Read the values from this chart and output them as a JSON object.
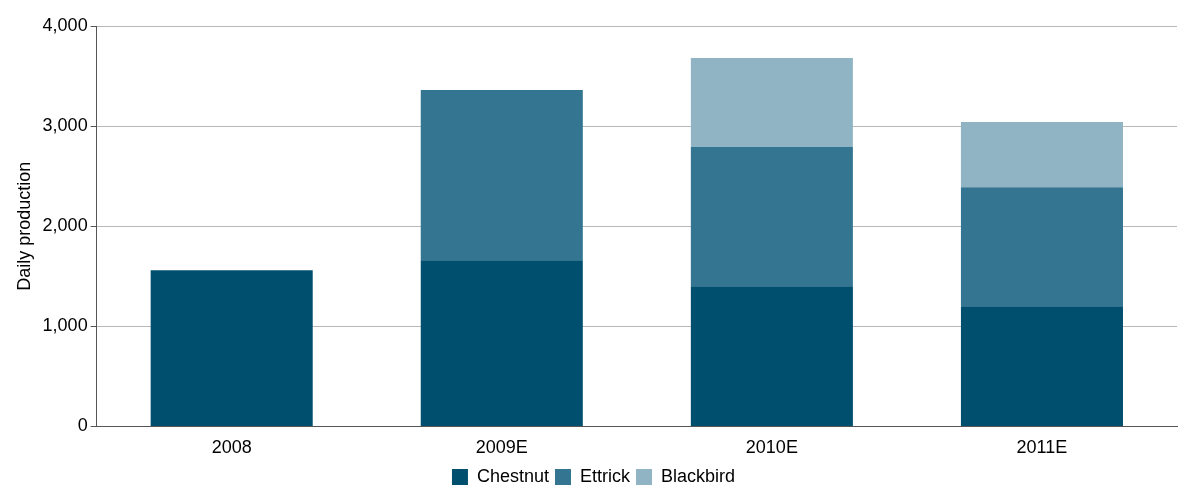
{
  "chart_data": {
    "type": "bar",
    "stacked": true,
    "ylabel": "Daily production",
    "categories": [
      "2008",
      "2009E",
      "2010E",
      "2011E"
    ],
    "series": [
      {
        "name": "Chestnut",
        "color": "#004f6f",
        "values": [
          1560,
          1660,
          1400,
          1200
        ]
      },
      {
        "name": "Ettrick",
        "color": "#347591",
        "values": [
          null,
          1700,
          1390,
          1190
        ]
      },
      {
        "name": "Blackbird",
        "color": "#91b4c4",
        "values": [
          null,
          null,
          890,
          650
        ]
      }
    ],
    "ylim": [
      0,
      4000
    ],
    "yticks": [
      {
        "value": 0,
        "label": "0"
      },
      {
        "value": 1000,
        "label": "1,000"
      },
      {
        "value": 2000,
        "label": "2,000"
      },
      {
        "value": 3000,
        "label": "3,000"
      },
      {
        "value": 4000,
        "label": "4,000"
      }
    ],
    "grid": "y",
    "legend": "bottom"
  }
}
